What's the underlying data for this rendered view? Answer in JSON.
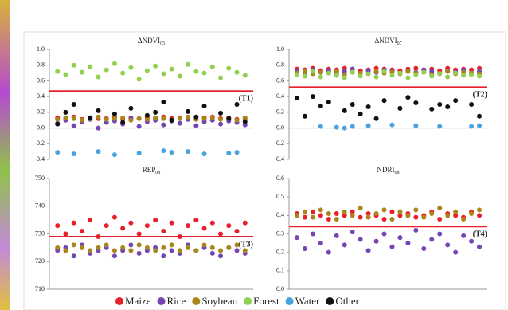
{
  "chart_data": [
    {
      "type": "scatter",
      "title": "ΔNDVI",
      "title_sub": "05",
      "x": [
        1,
        2,
        3,
        4,
        5,
        6,
        7,
        8,
        9,
        10,
        11,
        12,
        13,
        14,
        15,
        16,
        17,
        18,
        19,
        20,
        21,
        22,
        23,
        24
      ],
      "xlim": [
        0,
        25
      ],
      "ylim": [
        -0.4,
        1.0
      ],
      "yticks": [
        -0.4,
        -0.2,
        {
          "value": 0,
          "label": "0.0"
        },
        0.2,
        0.4,
        0.6,
        0.8,
        {
          "value": 1,
          "label": "1.0"
        }
      ],
      "threshold": {
        "value": 0.47,
        "label": "(T1)",
        "color": "#e8202a"
      },
      "series": [
        {
          "name": "Maize",
          "color": "#e8202a",
          "values": [
            0.13,
            0.12,
            0.14,
            0.11,
            0.13,
            0.12,
            0.12,
            0.14,
            0.11,
            0.13,
            0.12,
            0.13,
            0.11,
            0.14,
            0.12,
            0.13,
            0.12,
            0.11,
            0.13,
            0.14,
            0.12,
            0.13,
            0.11,
            0.12
          ]
        },
        {
          "name": "Rice",
          "color": "#7446b4",
          "values": [
            0.06,
            0.1,
            0.03,
            0.08,
            0.11,
            0.0,
            0.07,
            0.09,
            0.05,
            0.12,
            0.02,
            0.08,
            0.1,
            0.04,
            0.09,
            0.06,
            0.11,
            0.03,
            0.08,
            0.1,
            0.05,
            0.09,
            0.07,
            0.04
          ]
        },
        {
          "name": "Soybean",
          "color": "#a8861a",
          "values": [
            0.11,
            0.13,
            0.12,
            0.1,
            0.12,
            0.14,
            0.11,
            0.12,
            0.13,
            0.1,
            0.12,
            0.11,
            0.13,
            0.12,
            0.1,
            0.12,
            0.14,
            0.11,
            0.12,
            0.13,
            0.11,
            0.12,
            0.1,
            0.13
          ]
        },
        {
          "name": "Forest",
          "color": "#92d050",
          "values": [
            0.72,
            0.68,
            0.8,
            0.71,
            0.78,
            0.65,
            0.74,
            0.82,
            0.7,
            0.77,
            0.62,
            0.73,
            0.79,
            0.69,
            0.75,
            0.66,
            0.81,
            0.72,
            0.7,
            0.78,
            0.64,
            0.76,
            0.71,
            0.67
          ]
        },
        {
          "name": "Water",
          "color": "#4aa3df",
          "values": [
            -0.31,
            null,
            -0.33,
            null,
            null,
            -0.3,
            null,
            -0.34,
            null,
            null,
            -0.32,
            null,
            null,
            -0.29,
            -0.31,
            null,
            -0.3,
            null,
            -0.33,
            null,
            null,
            -0.32,
            -0.31,
            null
          ]
        },
        {
          "name": "Other",
          "color": "#111111",
          "values": [
            0.05,
            0.2,
            0.3,
            null,
            0.13,
            0.22,
            null,
            0.18,
            0.07,
            0.25,
            null,
            0.16,
            0.2,
            0.33,
            0.1,
            null,
            0.21,
            0.14,
            0.28,
            null,
            0.19,
            0.12,
            0.3,
            0.08
          ]
        }
      ]
    },
    {
      "type": "scatter",
      "title": "ΔNDVI",
      "title_sub": "07",
      "x": [
        1,
        2,
        3,
        4,
        5,
        6,
        7,
        8,
        9,
        10,
        11,
        12,
        13,
        14,
        15,
        16,
        17,
        18,
        19,
        20,
        21,
        22,
        23,
        24
      ],
      "xlim": [
        0,
        25
      ],
      "ylim": [
        -0.4,
        1.0
      ],
      "yticks": [
        -0.4,
        -0.2,
        {
          "value": 0,
          "label": "0.0"
        },
        0.2,
        0.4,
        0.6,
        0.8,
        {
          "value": 1,
          "label": "1.0"
        }
      ],
      "threshold": {
        "value": 0.52,
        "label": "(T2)",
        "color": "#e8202a"
      },
      "series": [
        {
          "name": "Maize",
          "color": "#e8202a",
          "values": [
            0.75,
            0.74,
            0.76,
            0.73,
            0.75,
            0.74,
            0.76,
            0.75,
            0.73,
            0.74,
            0.76,
            0.75,
            0.74,
            0.73,
            0.75,
            0.76,
            0.74,
            0.75,
            0.73,
            0.76,
            0.74,
            0.75,
            0.74,
            0.76
          ]
        },
        {
          "name": "Rice",
          "color": "#7446b4",
          "values": [
            0.72,
            0.7,
            0.74,
            0.71,
            0.73,
            0.69,
            0.72,
            0.75,
            0.7,
            0.73,
            0.71,
            0.74,
            0.72,
            0.7,
            0.73,
            0.71,
            0.74,
            0.72,
            0.69,
            0.73,
            0.71,
            0.74,
            0.7,
            0.72
          ]
        },
        {
          "name": "Soybean",
          "color": "#a8861a",
          "values": [
            0.7,
            0.72,
            0.69,
            0.71,
            0.7,
            0.72,
            0.68,
            0.71,
            0.7,
            0.69,
            0.72,
            0.7,
            0.71,
            0.69,
            0.72,
            0.7,
            0.71,
            0.68,
            0.7,
            0.72,
            0.69,
            0.71,
            0.7,
            0.69
          ]
        },
        {
          "name": "Forest",
          "color": "#92d050",
          "values": [
            0.68,
            0.66,
            0.72,
            0.65,
            0.7,
            0.67,
            0.64,
            0.71,
            0.66,
            0.69,
            0.65,
            0.72,
            0.67,
            0.7,
            0.64,
            0.68,
            0.71,
            0.66,
            0.69,
            0.65,
            0.7,
            0.67,
            0.68,
            0.66
          ]
        },
        {
          "name": "Water",
          "color": "#4aa3df",
          "values": [
            null,
            null,
            null,
            0.02,
            null,
            0.01,
            0.0,
            0.02,
            null,
            0.03,
            null,
            null,
            0.04,
            null,
            null,
            0.03,
            null,
            null,
            0.02,
            null,
            null,
            null,
            0.02,
            0.03
          ]
        },
        {
          "name": "Other",
          "color": "#111111",
          "values": [
            0.38,
            0.15,
            0.4,
            0.28,
            0.33,
            null,
            0.22,
            0.3,
            0.18,
            0.27,
            0.12,
            0.35,
            null,
            0.25,
            0.39,
            0.32,
            null,
            0.24,
            0.3,
            0.27,
            0.35,
            null,
            0.3,
            0.15
          ]
        }
      ]
    },
    {
      "type": "scatter",
      "title": "REP",
      "title_sub": "08",
      "x": [
        1,
        2,
        3,
        4,
        5,
        6,
        7,
        8,
        9,
        10,
        11,
        12,
        13,
        14,
        15,
        16,
        17,
        18,
        19,
        20,
        21,
        22,
        23,
        24
      ],
      "xlim": [
        0,
        25
      ],
      "ylim": [
        710,
        750
      ],
      "yticks": [
        710,
        720,
        730,
        740,
        750
      ],
      "threshold": {
        "value": 729,
        "label": "(T3)",
        "color": "#e8202a"
      },
      "series": [
        {
          "name": "Maize",
          "color": "#e8202a",
          "values": [
            733,
            730,
            734,
            731,
            735,
            729,
            733,
            736,
            732,
            734,
            730,
            733,
            735,
            731,
            734,
            729,
            733,
            735,
            732,
            734,
            730,
            733,
            731,
            734
          ]
        },
        {
          "name": "Rice",
          "color": "#7446b4",
          "values": [
            724,
            725,
            722,
            726,
            723,
            724,
            725,
            722,
            724,
            726,
            723,
            724,
            725,
            722,
            724,
            723,
            726,
            724,
            725,
            723,
            722,
            725,
            724,
            723
          ]
        },
        {
          "name": "Soybean",
          "color": "#a8861a",
          "values": [
            725,
            724,
            726,
            725,
            724,
            725,
            726,
            724,
            725,
            724,
            726,
            725,
            724,
            725,
            726,
            724,
            725,
            724,
            726,
            725,
            724,
            725,
            726,
            724
          ]
        }
      ]
    },
    {
      "type": "scatter",
      "title": "NDRI",
      "title_sub": "08",
      "x": [
        1,
        2,
        3,
        4,
        5,
        6,
        7,
        8,
        9,
        10,
        11,
        12,
        13,
        14,
        15,
        16,
        17,
        18,
        19,
        20,
        21,
        22,
        23,
        24
      ],
      "xlim": [
        0,
        25
      ],
      "ylim": [
        0,
        0.6
      ],
      "yticks": [
        {
          "value": 0,
          "label": "0.0"
        },
        0.1,
        0.2,
        0.3,
        0.4,
        0.5,
        0.6
      ],
      "threshold": {
        "value": 0.34,
        "label": "(T4)",
        "color": "#e8202a"
      },
      "series": [
        {
          "name": "Maize",
          "color": "#e8202a",
          "values": [
            0.41,
            0.39,
            0.42,
            0.4,
            0.38,
            0.41,
            0.4,
            0.42,
            0.39,
            0.41,
            0.4,
            0.38,
            0.42,
            0.4,
            0.41,
            0.39,
            0.4,
            0.42,
            0.38,
            0.41,
            0.4,
            0.39,
            0.42,
            0.4
          ]
        },
        {
          "name": "Rice",
          "color": "#7446b4",
          "values": [
            0.28,
            0.22,
            0.3,
            0.25,
            0.2,
            0.29,
            0.24,
            0.31,
            0.27,
            0.21,
            0.26,
            0.3,
            0.23,
            0.28,
            0.25,
            0.32,
            0.22,
            0.27,
            0.3,
            0.24,
            0.2,
            0.29,
            0.26,
            0.23
          ]
        },
        {
          "name": "Soybean",
          "color": "#a8861a",
          "values": [
            0.4,
            0.42,
            0.39,
            0.43,
            0.41,
            0.38,
            0.42,
            0.4,
            0.44,
            0.39,
            0.41,
            0.43,
            0.38,
            0.42,
            0.4,
            0.43,
            0.39,
            0.41,
            0.44,
            0.4,
            0.42,
            0.38,
            0.41,
            0.43
          ]
        }
      ]
    }
  ]
}
